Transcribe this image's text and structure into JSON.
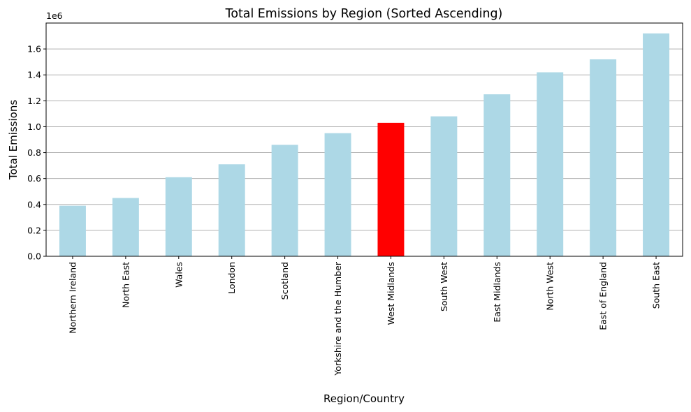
{
  "chart_data": {
    "type": "bar",
    "title": "Total Emissions by Region (Sorted Ascending)",
    "xlabel": "Region/Country",
    "ylabel": "Total Emissions",
    "y_scale_label": "1e6",
    "y_multiplier": 1000000,
    "ylim": [
      0,
      1.8
    ],
    "y_ticks": [
      0.0,
      0.2,
      0.4,
      0.6,
      0.8,
      1.0,
      1.2,
      1.4,
      1.6
    ],
    "y_tick_labels": [
      "0.0",
      "0.2",
      "0.4",
      "0.6",
      "0.8",
      "1.0",
      "1.2",
      "1.4",
      "1.6"
    ],
    "grid": "horizontal",
    "categories": [
      "Northern Ireland",
      "North East",
      "Wales",
      "London",
      "Scotland",
      "Yorkshire and the Humber",
      "West Midlands",
      "South West",
      "East Midlands",
      "North West",
      "East of England",
      "South East"
    ],
    "values": [
      0.39,
      0.45,
      0.61,
      0.71,
      0.86,
      0.95,
      1.03,
      1.08,
      1.25,
      1.42,
      1.52,
      1.72
    ],
    "bar_color": "#add8e6",
    "highlight_color": "#ff0000",
    "highlight_category": "West Midlands",
    "grid_color": "#b0b0b0"
  }
}
